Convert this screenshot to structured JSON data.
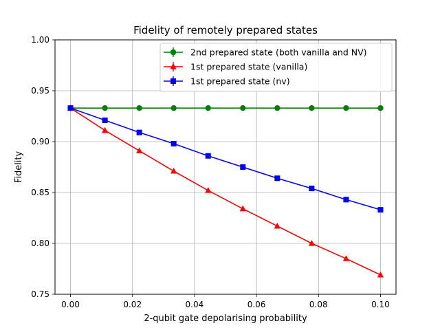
{
  "chart_data": {
    "type": "line",
    "title": "Fidelity of remotely prepared states",
    "xlabel": "2-qubit gate depolarising probability",
    "ylabel": "Fidelity",
    "xlim": [
      -0.005,
      0.105
    ],
    "ylim": [
      0.75,
      1.0
    ],
    "x_ticks": [
      0.0,
      0.02,
      0.04,
      0.06,
      0.08,
      0.1
    ],
    "x_tick_labels": [
      "0.00",
      "0.02",
      "0.04",
      "0.06",
      "0.08",
      "0.10"
    ],
    "y_ticks": [
      0.75,
      0.8,
      0.85,
      0.9,
      0.95,
      1.0
    ],
    "y_tick_labels": [
      "0.75",
      "0.80",
      "0.85",
      "0.90",
      "0.95",
      "1.00"
    ],
    "grid": true,
    "legend_position": "top-right",
    "x": [
      0.0,
      0.0111,
      0.0222,
      0.0333,
      0.0444,
      0.0556,
      0.0667,
      0.0778,
      0.0889,
      0.1
    ],
    "series": [
      {
        "name": "2nd prepared state (both vanilla and NV)",
        "color": "#008000",
        "marker": "circle",
        "values": [
          0.933,
          0.933,
          0.933,
          0.933,
          0.933,
          0.933,
          0.933,
          0.933,
          0.933,
          0.933
        ]
      },
      {
        "name": "1st prepared state (vanilla)",
        "color": "#ff0000",
        "marker": "triangle",
        "values": [
          0.933,
          0.911,
          0.891,
          0.871,
          0.852,
          0.834,
          0.817,
          0.8,
          0.785,
          0.769
        ]
      },
      {
        "name": "1st prepared state (nv)",
        "color": "#0000ff",
        "marker": "square",
        "values": [
          0.933,
          0.921,
          0.909,
          0.898,
          0.886,
          0.875,
          0.864,
          0.854,
          0.843,
          0.833
        ]
      }
    ]
  }
}
